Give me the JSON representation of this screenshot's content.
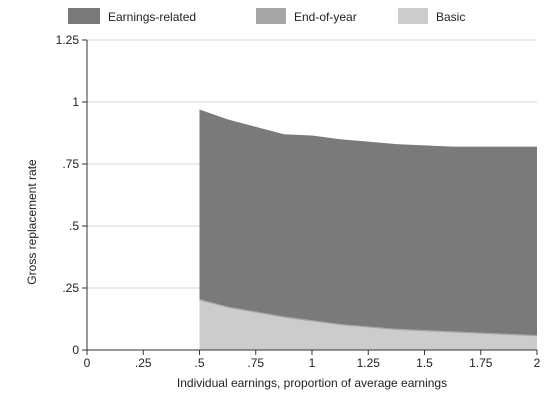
{
  "chart_data": {
    "type": "area",
    "stacked": true,
    "xlabel": "Individual earnings, proportion of average earnings",
    "ylabel": "Gross replacement rate",
    "xlim": [
      0,
      2
    ],
    "ylim": [
      0,
      1.25
    ],
    "x_ticks": [
      {
        "value": 0,
        "label": "0"
      },
      {
        "value": 0.25,
        "label": ".25"
      },
      {
        "value": 0.5,
        "label": ".5"
      },
      {
        "value": 0.75,
        "label": ".75"
      },
      {
        "value": 1,
        "label": "1"
      },
      {
        "value": 1.25,
        "label": "1.25"
      },
      {
        "value": 1.5,
        "label": "1.5"
      },
      {
        "value": 1.75,
        "label": "1.75"
      },
      {
        "value": 2,
        "label": "2"
      }
    ],
    "y_ticks": [
      {
        "value": 0,
        "label": "0"
      },
      {
        "value": 0.25,
        "label": ".25"
      },
      {
        "value": 0.5,
        "label": ".5"
      },
      {
        "value": 0.75,
        "label": ".75"
      },
      {
        "value": 1,
        "label": "1"
      },
      {
        "value": 1.25,
        "label": "1.25"
      }
    ],
    "grid": "horizontal",
    "legend_position": "top",
    "x": [
      0.5,
      0.625,
      0.75,
      0.875,
      1.0,
      1.125,
      1.25,
      1.375,
      1.5,
      1.625,
      1.75,
      1.875,
      2.0
    ],
    "series": [
      {
        "name": "Basic",
        "color": "#cccccc",
        "values": [
          0.2,
          0.17,
          0.15,
          0.13,
          0.115,
          0.1,
          0.09,
          0.08,
          0.075,
          0.07,
          0.065,
          0.06,
          0.055
        ]
      },
      {
        "name": "End-of-year",
        "color": "#a6a6a6",
        "values": [
          0.005,
          0.005,
          0.005,
          0.005,
          0.005,
          0.005,
          0.005,
          0.005,
          0.005,
          0.005,
          0.005,
          0.005,
          0.005
        ]
      },
      {
        "name": "Earnings-related",
        "color": "#7a7a7a",
        "values": [
          0.765,
          0.755,
          0.745,
          0.735,
          0.745,
          0.745,
          0.745,
          0.745,
          0.745,
          0.745,
          0.75,
          0.755,
          0.76
        ]
      }
    ],
    "legend_order": [
      "Earnings-related",
      "End-of-year",
      "Basic"
    ]
  }
}
